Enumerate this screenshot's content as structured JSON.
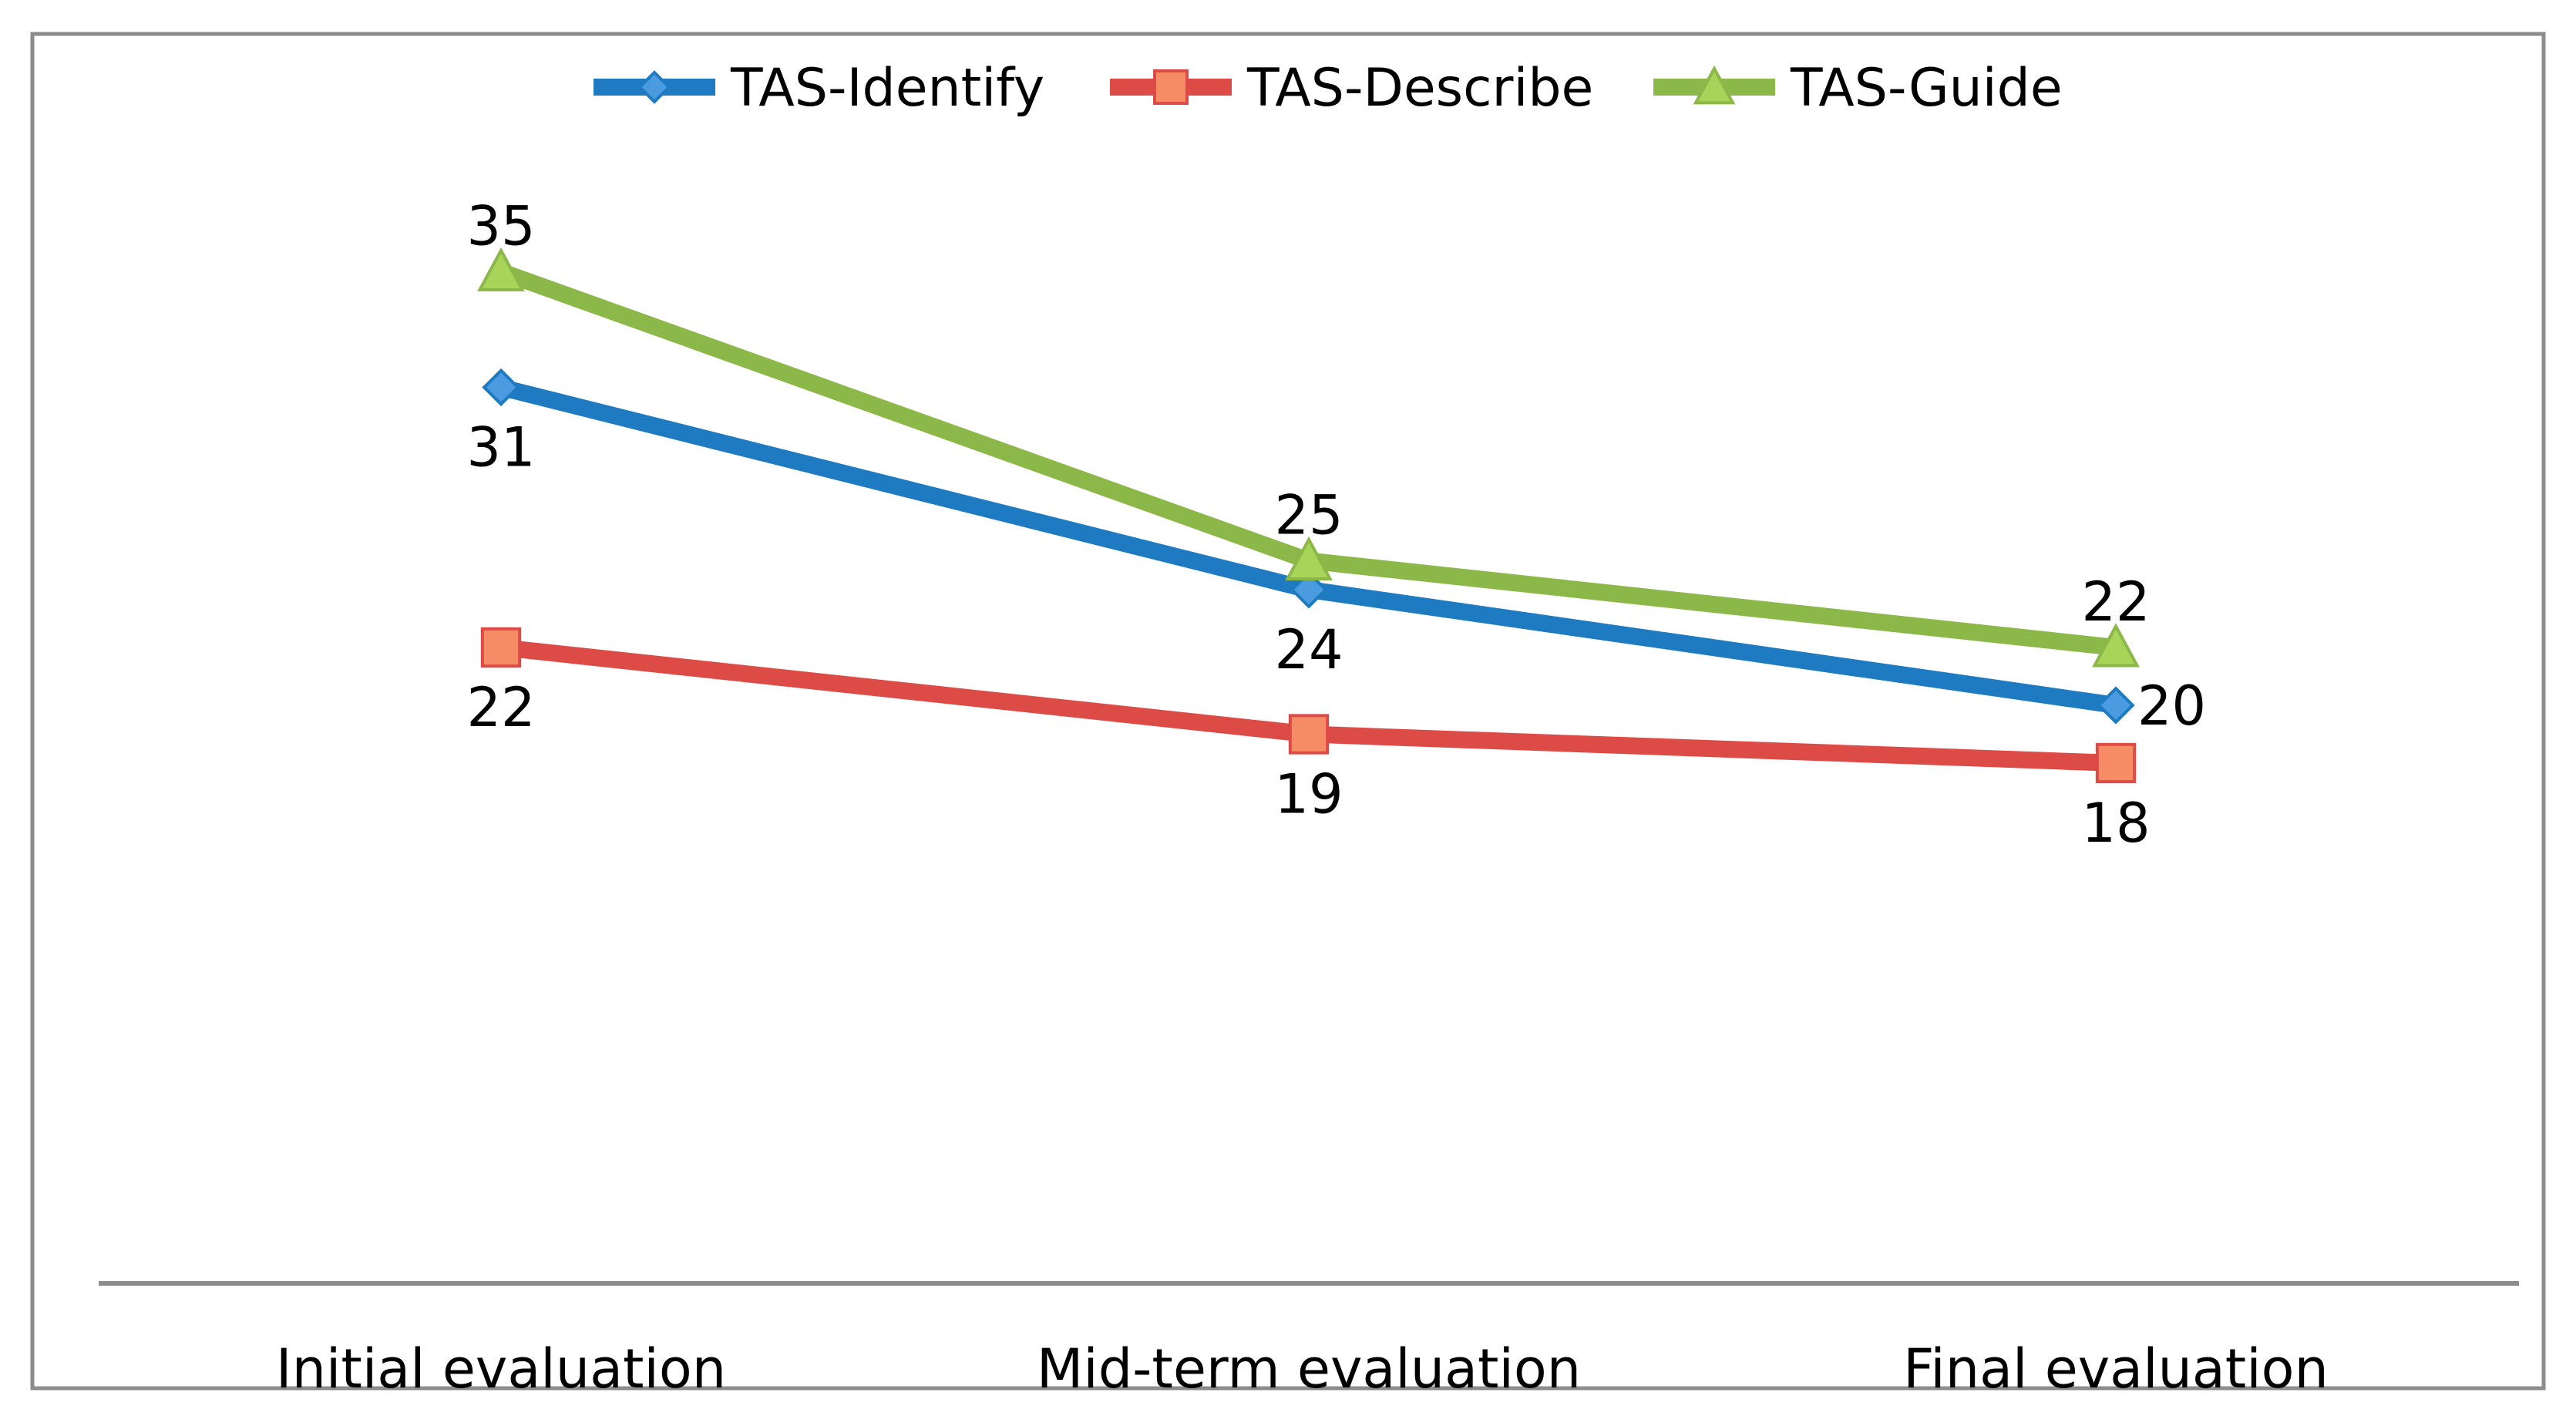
{
  "chart_data": {
    "type": "line",
    "title": "",
    "xlabel": "",
    "ylabel": "",
    "categories": [
      "Initial evaluation",
      "Mid-term evaluation",
      "Final evaluation"
    ],
    "ylim": [
      0,
      52
    ],
    "grid": false,
    "legend_position": "top",
    "series": [
      {
        "name": "TAS-Identify",
        "marker": "diamond",
        "color": "#1F7BC1",
        "marker_color": "#4A9BE0",
        "values": [
          31,
          24,
          20
        ],
        "label_position": [
          "below",
          "below",
          "right"
        ]
      },
      {
        "name": "TAS-Describe",
        "marker": "square",
        "color": "#DD4B47",
        "marker_color": "#F58C66",
        "values": [
          22,
          19,
          18
        ],
        "label_position": [
          "below",
          "below",
          "below"
        ]
      },
      {
        "name": "TAS-Guide",
        "marker": "triangle",
        "color": "#8BB848",
        "marker_color": "#A8D45A",
        "values": [
          35,
          25,
          22
        ],
        "label_position": [
          "above",
          "above",
          "above"
        ]
      }
    ]
  }
}
